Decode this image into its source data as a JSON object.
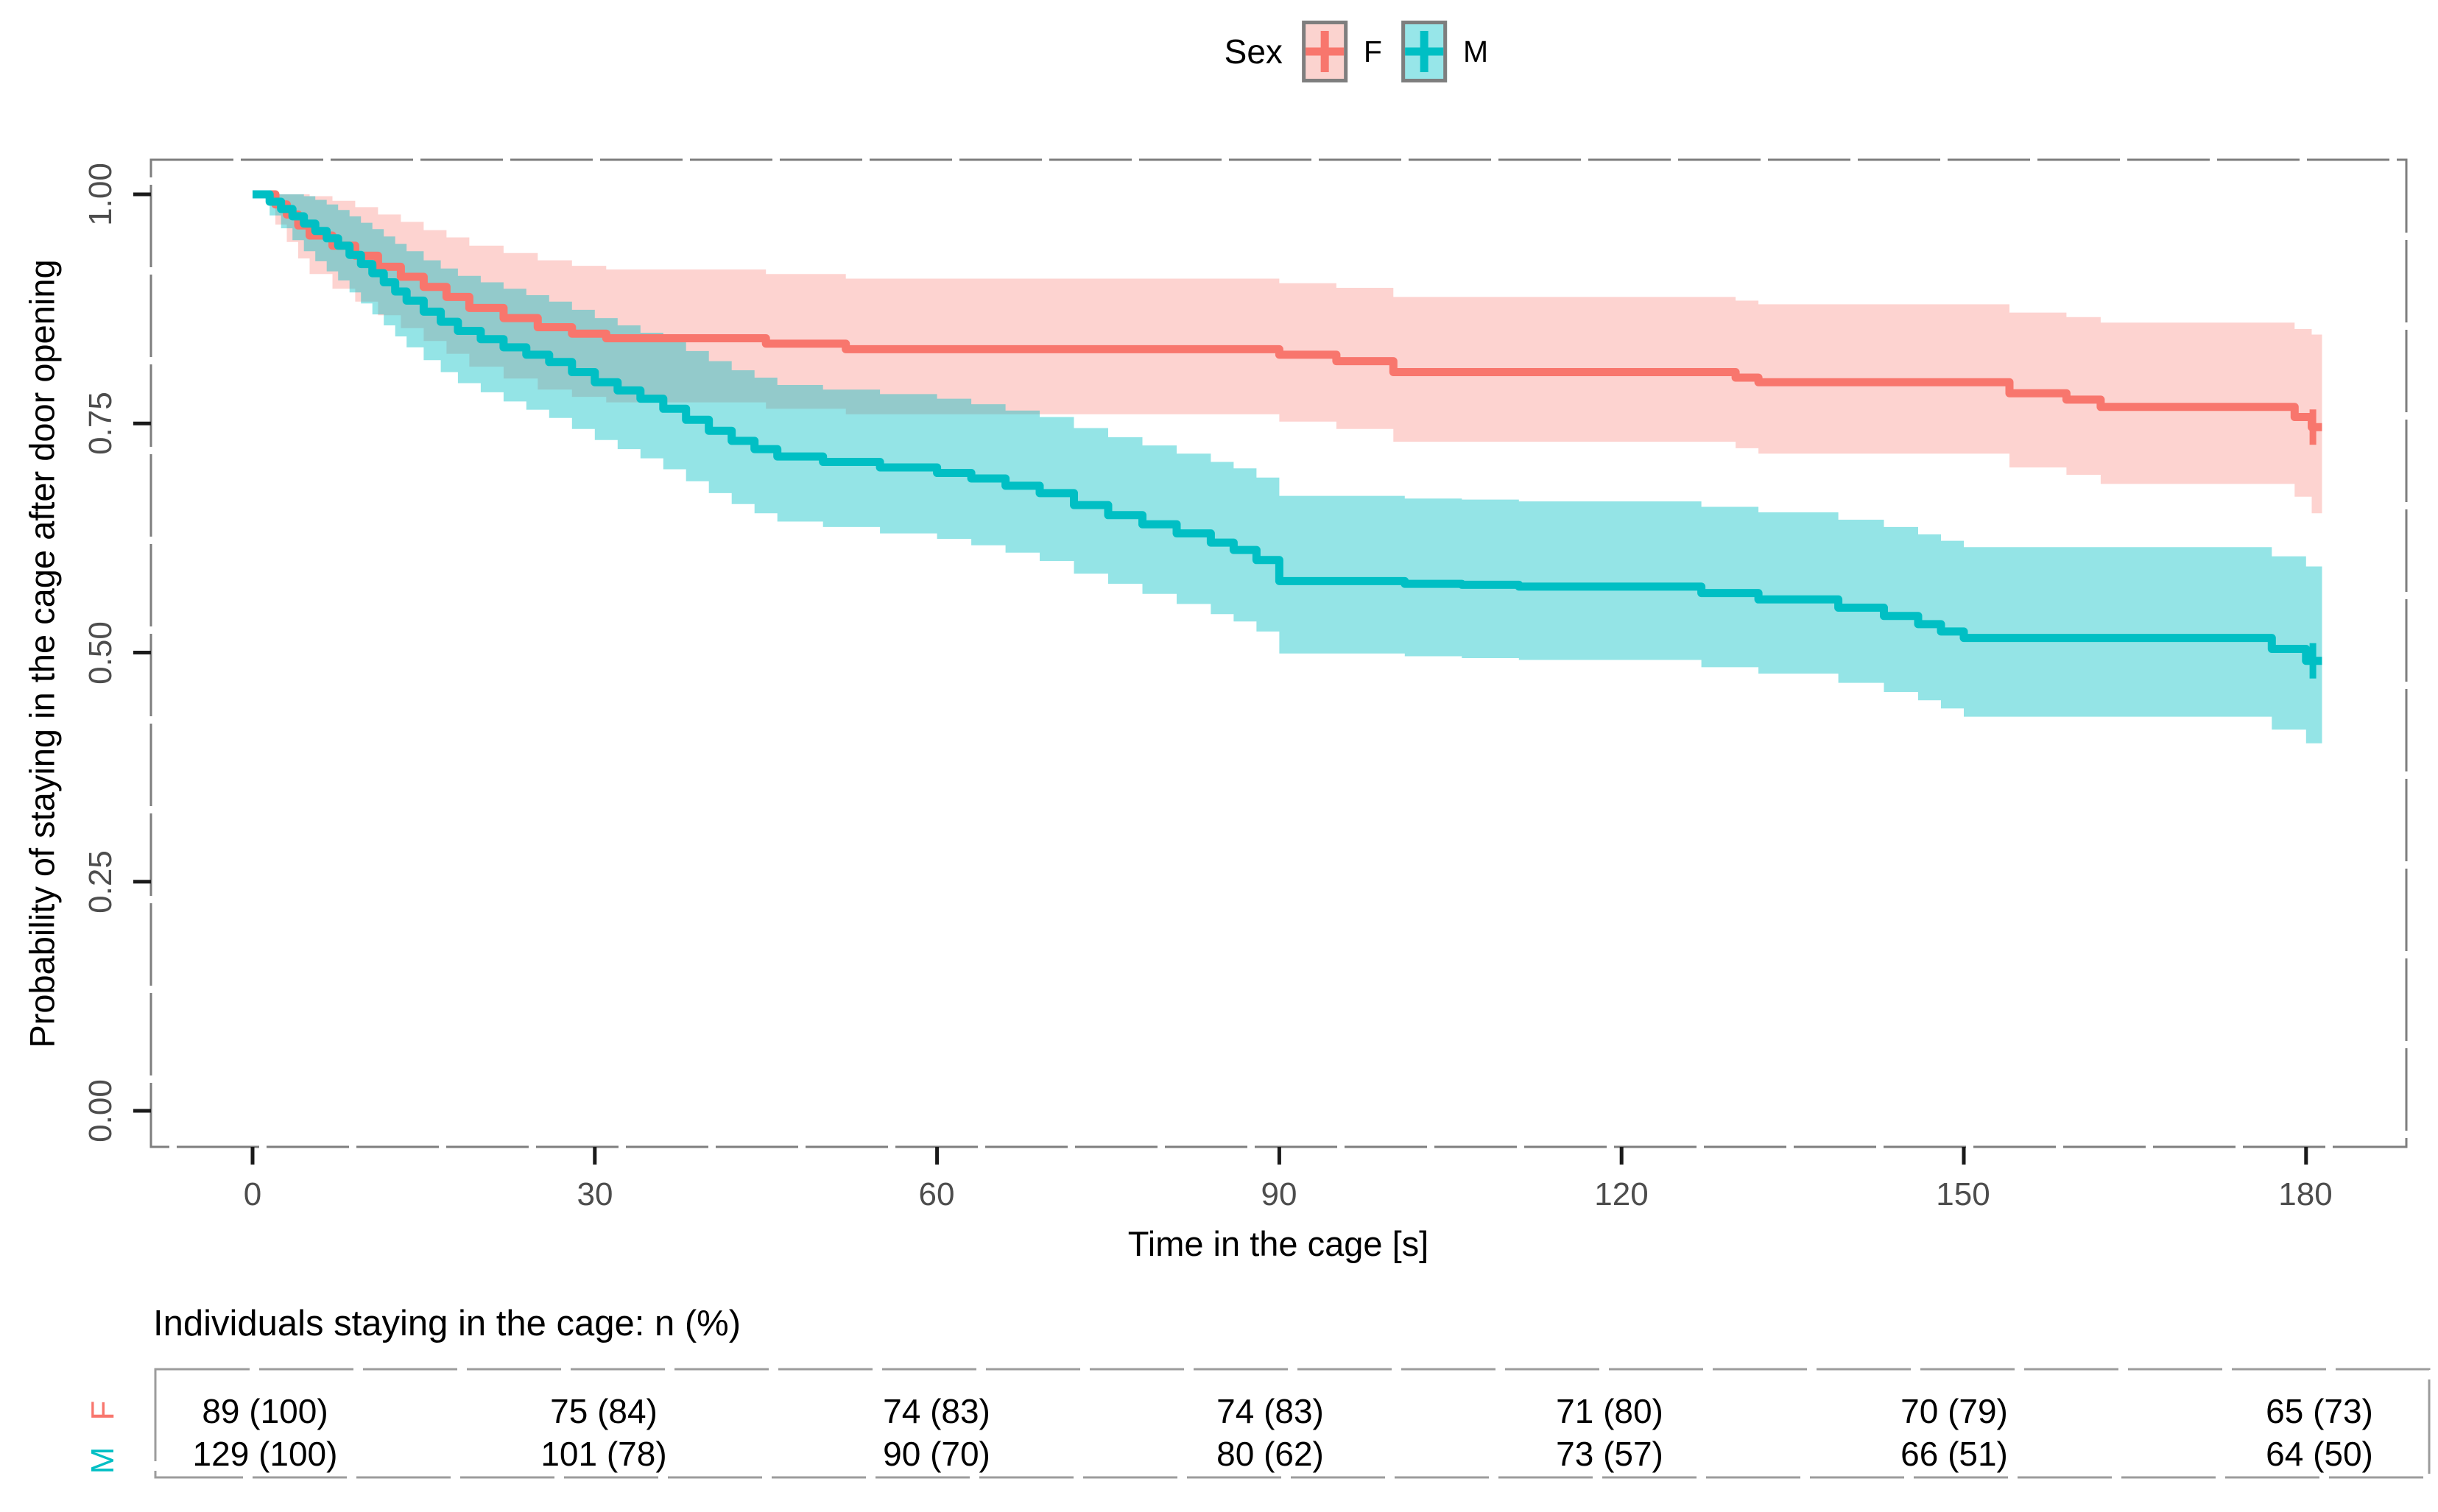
{
  "legend": {
    "title": "Sex",
    "items": [
      {
        "label": "F",
        "color": "#F8766D",
        "fill": "#FBD3CF"
      },
      {
        "label": "M",
        "color": "#00BFC4",
        "fill": "#97E6E9"
      }
    ]
  },
  "axes": {
    "y_title": "Probability of staying in the cage after door opening",
    "x_title": "Time in the cage [s]",
    "y_tick_labels": [
      "1.00",
      "0.75",
      "0.50",
      "0.25",
      "0.00"
    ],
    "x_tick_labels": [
      "0",
      "30",
      "60",
      "90",
      "120",
      "150",
      "180"
    ]
  },
  "risk_table": {
    "title": "Individuals staying in the cage: n (%)",
    "rows": [
      {
        "label": "F",
        "color": "#F8766D",
        "cells": [
          "89 (100)",
          "75 (84)",
          "74 (83)",
          "74 (83)",
          "71 (80)",
          "70 (79)",
          "65 (73)"
        ]
      },
      {
        "label": "M",
        "color": "#00BFC4",
        "cells": [
          "129 (100)",
          "101 (78)",
          "90 (70)",
          "80 (62)",
          "73 (57)",
          "66 (51)",
          "64 (50)"
        ]
      }
    ]
  },
  "chart_data": {
    "type": "line",
    "subtype": "kaplan-meier-step",
    "title": "",
    "xlabel": "Time in the cage [s]",
    "ylabel": "Probability of staying in the cage after door opening",
    "xlim": [
      0,
      186
    ],
    "ylim": [
      0,
      1.05
    ],
    "x_ticks": [
      0,
      30,
      60,
      90,
      120,
      150,
      180
    ],
    "y_ticks": [
      1.0,
      0.75,
      0.5,
      0.25,
      0.0
    ],
    "grid": false,
    "legend_position": "top",
    "end_time": 181.4,
    "series": [
      {
        "name": "F",
        "color": "#F8766D",
        "band_color": "rgba(248,118,109,0.32)",
        "censor": {
          "t": 180.6,
          "s": 0.746
        },
        "steps": [
          [
            0,
            1.0,
            1.0,
            1.0
          ],
          [
            2,
            0.989,
            0.967,
            1.0
          ],
          [
            3,
            0.978,
            0.948,
            1.0
          ],
          [
            4,
            0.966,
            0.93,
            1.0
          ],
          [
            5,
            0.955,
            0.913,
            0.998
          ],
          [
            7,
            0.944,
            0.897,
            0.993
          ],
          [
            9,
            0.933,
            0.883,
            0.986
          ],
          [
            11,
            0.921,
            0.868,
            0.978
          ],
          [
            13,
            0.91,
            0.854,
            0.97
          ],
          [
            15,
            0.899,
            0.84,
            0.961
          ],
          [
            17,
            0.888,
            0.826,
            0.953
          ],
          [
            19,
            0.876,
            0.812,
            0.944
          ],
          [
            22,
            0.865,
            0.799,
            0.936
          ],
          [
            25,
            0.855,
            0.787,
            0.928
          ],
          [
            28,
            0.848,
            0.779,
            0.922
          ],
          [
            31,
            0.843,
            0.773,
            0.918
          ],
          [
            45,
            0.837,
            0.766,
            0.913
          ],
          [
            52,
            0.831,
            0.76,
            0.908
          ],
          [
            90,
            0.825,
            0.752,
            0.903
          ],
          [
            95,
            0.818,
            0.744,
            0.898
          ],
          [
            100,
            0.806,
            0.73,
            0.888
          ],
          [
            130,
            0.8,
            0.723,
            0.884
          ],
          [
            132,
            0.795,
            0.717,
            0.88
          ],
          [
            154,
            0.783,
            0.702,
            0.871
          ],
          [
            159,
            0.776,
            0.694,
            0.866
          ],
          [
            162,
            0.768,
            0.684,
            0.86
          ],
          [
            179,
            0.757,
            0.67,
            0.853
          ],
          [
            180.5,
            0.746,
            0.652,
            0.847
          ]
        ]
      },
      {
        "name": "M",
        "color": "#00BFC4",
        "band_color": "rgba(0,191,196,0.42)",
        "censor": {
          "t": 180.6,
          "s": 0.491
        },
        "steps": [
          [
            0,
            1.0,
            1.0,
            1.0
          ],
          [
            1.5,
            0.992,
            0.977,
            1.0
          ],
          [
            2.5,
            0.984,
            0.963,
            1.0
          ],
          [
            3.5,
            0.976,
            0.95,
            1.0
          ],
          [
            4.5,
            0.968,
            0.938,
            0.998
          ],
          [
            5.5,
            0.96,
            0.927,
            0.994
          ],
          [
            6.5,
            0.952,
            0.916,
            0.989
          ],
          [
            7.5,
            0.944,
            0.906,
            0.983
          ],
          [
            8.5,
            0.934,
            0.893,
            0.976
          ],
          [
            9.5,
            0.924,
            0.881,
            0.969
          ],
          [
            10.5,
            0.914,
            0.869,
            0.962
          ],
          [
            11.5,
            0.904,
            0.857,
            0.954
          ],
          [
            12.5,
            0.894,
            0.845,
            0.946
          ],
          [
            13.5,
            0.884,
            0.833,
            0.938
          ],
          [
            15,
            0.872,
            0.819,
            0.928
          ],
          [
            16.5,
            0.861,
            0.806,
            0.919
          ],
          [
            18,
            0.851,
            0.794,
            0.911
          ],
          [
            20,
            0.842,
            0.784,
            0.904
          ],
          [
            22,
            0.833,
            0.774,
            0.897
          ],
          [
            24,
            0.825,
            0.765,
            0.89
          ],
          [
            26,
            0.817,
            0.756,
            0.883
          ],
          [
            28,
            0.806,
            0.744,
            0.874
          ],
          [
            30,
            0.795,
            0.732,
            0.865
          ],
          [
            32,
            0.786,
            0.722,
            0.857
          ],
          [
            34,
            0.777,
            0.712,
            0.849
          ],
          [
            36,
            0.766,
            0.7,
            0.839
          ],
          [
            38,
            0.754,
            0.687,
            0.829
          ],
          [
            40,
            0.742,
            0.674,
            0.818
          ],
          [
            42,
            0.731,
            0.662,
            0.808
          ],
          [
            44,
            0.722,
            0.652,
            0.8
          ],
          [
            46,
            0.714,
            0.643,
            0.792
          ],
          [
            50,
            0.708,
            0.637,
            0.787
          ],
          [
            55,
            0.702,
            0.63,
            0.782
          ],
          [
            60,
            0.696,
            0.624,
            0.777
          ],
          [
            63,
            0.69,
            0.617,
            0.771
          ],
          [
            66,
            0.682,
            0.609,
            0.764
          ],
          [
            69,
            0.674,
            0.6,
            0.757
          ],
          [
            72,
            0.661,
            0.586,
            0.745
          ],
          [
            75,
            0.65,
            0.575,
            0.735
          ],
          [
            78,
            0.64,
            0.564,
            0.726
          ],
          [
            81,
            0.63,
            0.553,
            0.717
          ],
          [
            84,
            0.62,
            0.542,
            0.708
          ],
          [
            86,
            0.612,
            0.534,
            0.701
          ],
          [
            88,
            0.601,
            0.523,
            0.691
          ],
          [
            90,
            0.578,
            0.499,
            0.671
          ],
          [
            101,
            0.575,
            0.496,
            0.668
          ],
          [
            106,
            0.574,
            0.494,
            0.667
          ],
          [
            111,
            0.572,
            0.492,
            0.665
          ],
          [
            127,
            0.565,
            0.484,
            0.659
          ],
          [
            132,
            0.558,
            0.477,
            0.653
          ],
          [
            139,
            0.549,
            0.467,
            0.645
          ],
          [
            143,
            0.54,
            0.457,
            0.637
          ],
          [
            146,
            0.531,
            0.448,
            0.629
          ],
          [
            148,
            0.523,
            0.439,
            0.622
          ],
          [
            150,
            0.516,
            0.43,
            0.615
          ],
          [
            177,
            0.504,
            0.416,
            0.605
          ],
          [
            180,
            0.491,
            0.401,
            0.594
          ]
        ]
      }
    ],
    "risk_table": {
      "title": "Individuals staying in the cage: n (%)",
      "times": [
        0,
        30,
        60,
        90,
        120,
        150,
        180
      ],
      "F_n": [
        89,
        75,
        74,
        74,
        71,
        70,
        65
      ],
      "F_pct": [
        100,
        84,
        83,
        83,
        80,
        79,
        73
      ],
      "M_n": [
        129,
        101,
        90,
        80,
        73,
        66,
        64
      ],
      "M_pct": [
        100,
        78,
        70,
        62,
        57,
        51,
        50
      ]
    }
  }
}
